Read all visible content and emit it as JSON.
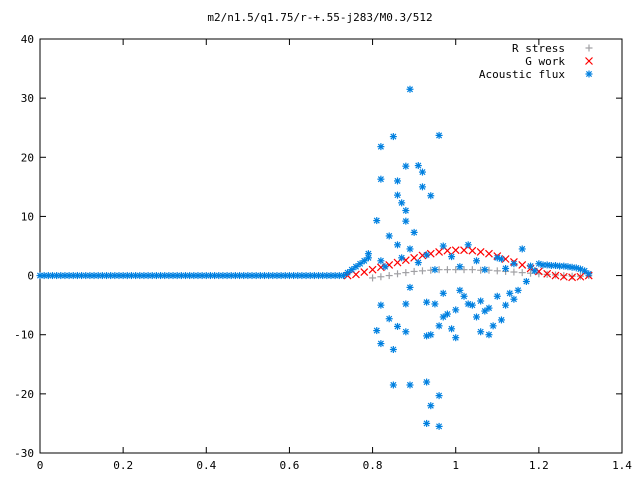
{
  "chart_data": {
    "type": "scatter",
    "title": "m2/n1.5/q1.75/r-+.55-j283/M0.3/512",
    "xlabel": "",
    "ylabel": "",
    "xlim": [
      0,
      1.4
    ],
    "ylim": [
      -30,
      40
    ],
    "x_ticks": [
      "0",
      "0.2",
      "0.4",
      "0.6",
      "0.8",
      "1",
      "1.2",
      "1.4"
    ],
    "y_ticks": [
      "40",
      "30",
      "20",
      "10",
      "0",
      "-10",
      "-20",
      "-30"
    ],
    "grid": false,
    "legend_position": "top-right",
    "series": [
      {
        "name": "R stress",
        "marker": "plus",
        "color": "#a0a0a4",
        "points": [
          [
            0.8,
            -0.4
          ],
          [
            0.82,
            -0.2
          ],
          [
            0.84,
            0.0
          ],
          [
            0.86,
            0.3
          ],
          [
            0.88,
            0.5
          ],
          [
            0.9,
            0.7
          ],
          [
            0.92,
            0.8
          ],
          [
            0.94,
            0.9
          ],
          [
            0.96,
            1.0
          ],
          [
            0.98,
            1.0
          ],
          [
            1.0,
            1.0
          ],
          [
            1.02,
            1.0
          ],
          [
            1.04,
            1.0
          ],
          [
            1.06,
            0.9
          ],
          [
            1.08,
            0.9
          ],
          [
            1.1,
            0.8
          ],
          [
            1.12,
            0.7
          ],
          [
            1.14,
            0.6
          ],
          [
            1.16,
            0.5
          ],
          [
            1.18,
            0.4
          ],
          [
            1.2,
            0.3
          ],
          [
            1.22,
            0.2
          ],
          [
            1.24,
            0.1
          ],
          [
            1.26,
            0.0
          ],
          [
            1.28,
            -0.1
          ],
          [
            1.3,
            -0.1
          ],
          [
            1.32,
            0.0
          ]
        ]
      },
      {
        "name": "G work",
        "marker": "cross",
        "color": "#ff0000",
        "points": [
          [
            0.74,
            0.0
          ],
          [
            0.76,
            0.2
          ],
          [
            0.78,
            0.6
          ],
          [
            0.8,
            1.0
          ],
          [
            0.82,
            1.4
          ],
          [
            0.84,
            1.8
          ],
          [
            0.86,
            2.2
          ],
          [
            0.88,
            2.6
          ],
          [
            0.9,
            3.0
          ],
          [
            0.92,
            3.4
          ],
          [
            0.94,
            3.7
          ],
          [
            0.96,
            4.0
          ],
          [
            0.98,
            4.2
          ],
          [
            1.0,
            4.3
          ],
          [
            1.02,
            4.3
          ],
          [
            1.04,
            4.2
          ],
          [
            1.06,
            4.0
          ],
          [
            1.08,
            3.7
          ],
          [
            1.1,
            3.3
          ],
          [
            1.12,
            2.8
          ],
          [
            1.14,
            2.3
          ],
          [
            1.16,
            1.8
          ],
          [
            1.18,
            1.2
          ],
          [
            1.2,
            0.7
          ],
          [
            1.22,
            0.3
          ],
          [
            1.24,
            0.0
          ],
          [
            1.26,
            -0.2
          ],
          [
            1.28,
            -0.3
          ],
          [
            1.3,
            -0.2
          ],
          [
            1.32,
            0.0
          ]
        ]
      },
      {
        "name": "Acoustic flux",
        "marker": "star",
        "color": "#0080e0",
        "points": [
          [
            0.0,
            0.0
          ],
          [
            0.01,
            0.0
          ],
          [
            0.02,
            0.0
          ],
          [
            0.03,
            0.0
          ],
          [
            0.04,
            0.0
          ],
          [
            0.05,
            0.0
          ],
          [
            0.06,
            0.0
          ],
          [
            0.07,
            0.0
          ],
          [
            0.08,
            0.0
          ],
          [
            0.09,
            0.0
          ],
          [
            0.1,
            0.0
          ],
          [
            0.11,
            0.0
          ],
          [
            0.12,
            0.0
          ],
          [
            0.13,
            0.0
          ],
          [
            0.14,
            0.0
          ],
          [
            0.15,
            0.0
          ],
          [
            0.16,
            0.0
          ],
          [
            0.17,
            0.0
          ],
          [
            0.18,
            0.0
          ],
          [
            0.19,
            0.0
          ],
          [
            0.2,
            0.0
          ],
          [
            0.21,
            0.0
          ],
          [
            0.22,
            0.0
          ],
          [
            0.23,
            0.0
          ],
          [
            0.24,
            0.0
          ],
          [
            0.25,
            0.0
          ],
          [
            0.26,
            0.0
          ],
          [
            0.27,
            0.0
          ],
          [
            0.28,
            0.0
          ],
          [
            0.29,
            0.0
          ],
          [
            0.3,
            0.0
          ],
          [
            0.31,
            0.0
          ],
          [
            0.32,
            0.0
          ],
          [
            0.33,
            0.0
          ],
          [
            0.34,
            0.0
          ],
          [
            0.35,
            0.0
          ],
          [
            0.36,
            0.0
          ],
          [
            0.37,
            0.0
          ],
          [
            0.38,
            0.0
          ],
          [
            0.39,
            0.0
          ],
          [
            0.4,
            0.0
          ],
          [
            0.41,
            0.0
          ],
          [
            0.42,
            0.0
          ],
          [
            0.43,
            0.0
          ],
          [
            0.44,
            0.0
          ],
          [
            0.45,
            0.0
          ],
          [
            0.46,
            0.0
          ],
          [
            0.47,
            0.0
          ],
          [
            0.48,
            0.0
          ],
          [
            0.49,
            0.0
          ],
          [
            0.5,
            0.0
          ],
          [
            0.51,
            0.0
          ],
          [
            0.52,
            0.0
          ],
          [
            0.53,
            0.0
          ],
          [
            0.54,
            0.0
          ],
          [
            0.55,
            0.0
          ],
          [
            0.56,
            0.0
          ],
          [
            0.57,
            0.0
          ],
          [
            0.58,
            0.0
          ],
          [
            0.59,
            0.0
          ],
          [
            0.6,
            0.0
          ],
          [
            0.61,
            0.0
          ],
          [
            0.62,
            0.0
          ],
          [
            0.63,
            0.0
          ],
          [
            0.64,
            0.0
          ],
          [
            0.65,
            0.0
          ],
          [
            0.66,
            0.0
          ],
          [
            0.67,
            0.0
          ],
          [
            0.68,
            0.0
          ],
          [
            0.69,
            0.0
          ],
          [
            0.7,
            0.0
          ],
          [
            0.71,
            0.0
          ],
          [
            0.72,
            0.0
          ],
          [
            0.73,
            0.0
          ],
          [
            0.74,
            0.5
          ],
          [
            0.75,
            1.0
          ],
          [
            0.76,
            1.5
          ],
          [
            0.77,
            2.0
          ],
          [
            0.78,
            2.5
          ],
          [
            0.79,
            3.0
          ],
          [
            1.2,
            2.0
          ],
          [
            1.21,
            1.8
          ],
          [
            1.22,
            1.8
          ],
          [
            1.23,
            1.7
          ],
          [
            1.24,
            1.7
          ],
          [
            1.25,
            1.6
          ],
          [
            1.26,
            1.6
          ],
          [
            1.27,
            1.5
          ],
          [
            1.28,
            1.4
          ],
          [
            1.29,
            1.3
          ],
          [
            1.3,
            1.1
          ],
          [
            1.31,
            0.8
          ],
          [
            1.32,
            0.3
          ],
          [
            0.89,
            31.5
          ],
          [
            0.96,
            23.7
          ],
          [
            0.85,
            23.5
          ],
          [
            0.82,
            21.8
          ],
          [
            0.91,
            18.6
          ],
          [
            0.88,
            18.5
          ],
          [
            0.92,
            17.5
          ],
          [
            0.82,
            16.3
          ],
          [
            0.86,
            16.0
          ],
          [
            0.92,
            15.0
          ],
          [
            0.86,
            13.6
          ],
          [
            0.94,
            13.5
          ],
          [
            0.87,
            12.3
          ],
          [
            0.88,
            11.0
          ],
          [
            0.81,
            9.3
          ],
          [
            0.88,
            9.2
          ],
          [
            0.9,
            7.3
          ],
          [
            0.84,
            6.7
          ],
          [
            0.86,
            5.2
          ],
          [
            0.89,
            4.5
          ],
          [
            0.97,
            5.0
          ],
          [
            1.03,
            5.2
          ],
          [
            1.16,
            4.5
          ],
          [
            1.1,
            3.0
          ],
          [
            0.93,
            3.5
          ],
          [
            0.99,
            3.2
          ],
          [
            0.82,
            2.5
          ],
          [
            0.79,
            3.7
          ],
          [
            0.87,
            3.0
          ],
          [
            1.05,
            2.5
          ],
          [
            1.11,
            2.8
          ],
          [
            1.14,
            2.0
          ],
          [
            1.18,
            1.6
          ],
          [
            0.83,
            1.5
          ],
          [
            0.91,
            2.2
          ],
          [
            0.95,
            1.0
          ],
          [
            1.01,
            1.5
          ],
          [
            1.07,
            1.0
          ],
          [
            1.12,
            1.2
          ],
          [
            1.19,
            0.8
          ],
          [
            0.82,
            -5.0
          ],
          [
            0.89,
            -2.0
          ],
          [
            0.88,
            -4.8
          ],
          [
            0.84,
            -7.3
          ],
          [
            0.86,
            -8.6
          ],
          [
            0.88,
            -9.5
          ],
          [
            0.81,
            -9.3
          ],
          [
            0.82,
            -11.5
          ],
          [
            0.85,
            -12.5
          ],
          [
            0.93,
            -4.5
          ],
          [
            0.95,
            -4.8
          ],
          [
            0.94,
            -10.0
          ],
          [
            0.93,
            -10.2
          ],
          [
            0.96,
            -8.5
          ],
          [
            0.97,
            -7.0
          ],
          [
            0.98,
            -6.5
          ],
          [
            1.0,
            -5.8
          ],
          [
            0.99,
            -9.0
          ],
          [
            1.0,
            -10.5
          ],
          [
            1.02,
            -3.5
          ],
          [
            1.04,
            -5.0
          ],
          [
            1.06,
            -4.3
          ],
          [
            1.07,
            -6.0
          ],
          [
            1.08,
            -5.5
          ],
          [
            1.09,
            -8.5
          ],
          [
            1.1,
            -3.5
          ],
          [
            1.11,
            -7.5
          ],
          [
            1.12,
            -5.0
          ],
          [
            1.05,
            -7.0
          ],
          [
            1.03,
            -4.8
          ],
          [
            1.13,
            -3.0
          ],
          [
            1.15,
            -2.5
          ],
          [
            1.17,
            -1.0
          ],
          [
            1.08,
            -10.0
          ],
          [
            0.85,
            -18.5
          ],
          [
            0.89,
            -18.5
          ],
          [
            0.93,
            -18.0
          ],
          [
            0.94,
            -22.0
          ],
          [
            0.96,
            -20.3
          ],
          [
            0.93,
            -25.0
          ],
          [
            0.96,
            -25.5
          ],
          [
            1.14,
            -4.0
          ],
          [
            0.97,
            -3.0
          ],
          [
            1.01,
            -2.5
          ],
          [
            1.06,
            -9.5
          ]
        ]
      }
    ]
  }
}
